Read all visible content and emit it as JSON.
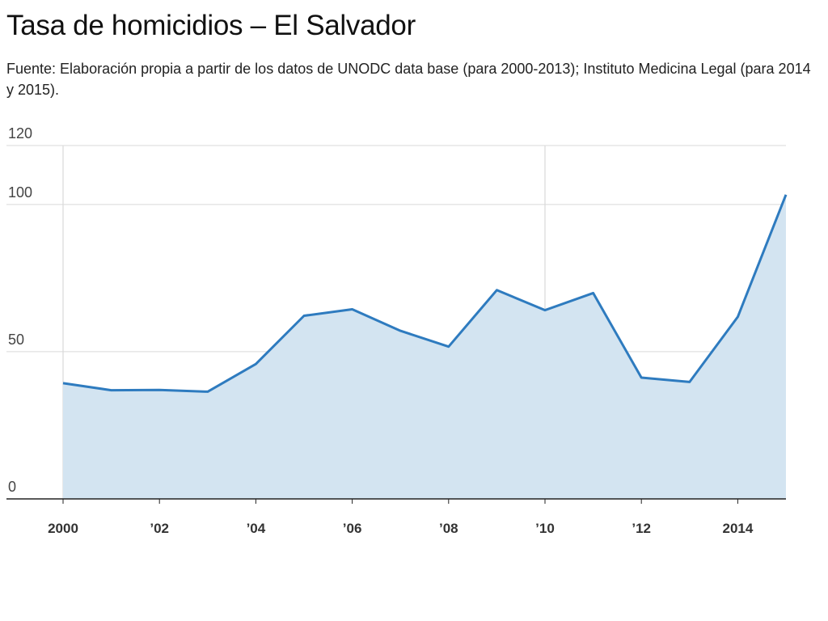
{
  "title": "Tasa de homicidios – El Salvador",
  "subtitle": "Fuente: Elaboración propia a partir de los datos de UNODC data base (para 2000-2013); Instituto Medicina Legal (para 2014 y 2015).",
  "colors": {
    "line": "#2e7bbf",
    "area": "#d3e4f1",
    "grid": "#d9d9d9",
    "axis": "#222222"
  },
  "chart_data": {
    "type": "area",
    "title": "Tasa de homicidios – El Salvador",
    "xlabel": "",
    "ylabel": "",
    "x": [
      2000,
      2001,
      2002,
      2003,
      2004,
      2005,
      2006,
      2007,
      2008,
      2009,
      2010,
      2011,
      2012,
      2013,
      2014,
      2015
    ],
    "values": [
      39.3,
      36.9,
      37.0,
      36.4,
      45.8,
      62.2,
      64.4,
      57.1,
      51.7,
      70.9,
      64.1,
      69.9,
      41.2,
      39.7,
      61.8,
      103.3
    ],
    "xlim": [
      2000,
      2015
    ],
    "ylim": [
      0,
      120
    ],
    "yticks": [
      "0",
      "50",
      "100",
      "120"
    ],
    "xticks": [
      {
        "x": 2000,
        "label": "2000"
      },
      {
        "x": 2002,
        "label": "’02"
      },
      {
        "x": 2004,
        "label": "’04"
      },
      {
        "x": 2006,
        "label": "’06"
      },
      {
        "x": 2008,
        "label": "’08"
      },
      {
        "x": 2010,
        "label": "’10"
      },
      {
        "x": 2012,
        "label": "’12"
      },
      {
        "x": 2014,
        "label": "2014"
      }
    ],
    "vertical_gridlines_at": [
      2000,
      2010
    ],
    "grid": true
  }
}
